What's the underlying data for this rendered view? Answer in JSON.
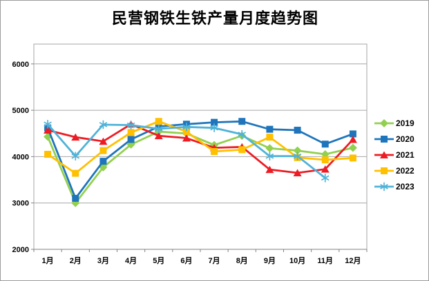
{
  "chart_data": {
    "type": "line",
    "title": "民营钢铁生铁产量月度趋势图",
    "categories": [
      "1月",
      "2月",
      "3月",
      "4月",
      "5月",
      "6月",
      "7月",
      "8月",
      "9月",
      "10月",
      "11月",
      "12月"
    ],
    "series": [
      {
        "name": "2019",
        "color": "#92D050",
        "marker": "diamond",
        "values": [
          4430,
          3000,
          3770,
          4260,
          4540,
          4500,
          4250,
          4450,
          4180,
          4130,
          4050,
          4190
        ]
      },
      {
        "name": "2020",
        "color": "#1F75BB",
        "marker": "square",
        "values": [
          4620,
          3100,
          3900,
          4370,
          4650,
          4700,
          4740,
          4760,
          4590,
          4570,
          4270,
          4490
        ]
      },
      {
        "name": "2021",
        "color": "#ED1C24",
        "marker": "triangle",
        "values": [
          4570,
          4420,
          4330,
          4700,
          4450,
          4400,
          4190,
          4210,
          3720,
          3650,
          3730,
          4370
        ]
      },
      {
        "name": "2022",
        "color": "#FFC000",
        "marker": "square",
        "values": [
          4050,
          3640,
          4130,
          4520,
          4760,
          4540,
          4110,
          4150,
          4420,
          3980,
          3930,
          3970
        ]
      },
      {
        "name": "2023",
        "color": "#4FB3D9",
        "marker": "asterisk",
        "values": [
          4700,
          4010,
          4690,
          4680,
          4600,
          4640,
          4620,
          4480,
          4010,
          4010,
          3540,
          null
        ]
      }
    ],
    "xlabel": "",
    "ylabel": "",
    "ylim": [
      2000,
      6000
    ],
    "yticks": [
      2000,
      3000,
      4000,
      5000,
      6000
    ],
    "grid": true,
    "legend_position": "right",
    "grid_color": "#A6A6A6",
    "axis_color": "#808080",
    "text_color": "#000000",
    "background": "#FFFFFF"
  }
}
